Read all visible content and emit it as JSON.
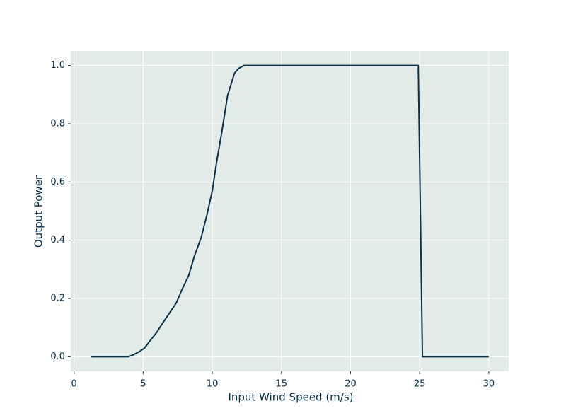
{
  "chart_data": {
    "type": "line",
    "xlabel": "Input Wind Speed (m/s)",
    "ylabel": "Output Power",
    "x": [
      1.2,
      3.9,
      4.3,
      4.7,
      5.1,
      5.5,
      6.0,
      6.4,
      6.9,
      7.4,
      7.8,
      8.3,
      8.7,
      9.2,
      9.6,
      10.0,
      10.3,
      10.7,
      11.1,
      11.6,
      11.9,
      12.3,
      24.9,
      25.2,
      30.0
    ],
    "values": [
      0,
      0,
      0.007,
      0.017,
      0.03,
      0.055,
      0.085,
      0.115,
      0.15,
      0.185,
      0.23,
      0.28,
      0.345,
      0.41,
      0.485,
      0.57,
      0.665,
      0.775,
      0.896,
      0.973,
      0.99,
      1.0,
      1.0,
      0,
      0
    ],
    "color": "#0b3149",
    "background": "#e3ebe8",
    "grid": true,
    "xlim": [
      -0.24,
      31.44
    ],
    "ylim": [
      -0.05,
      1.05
    ],
    "xticks": [
      0,
      5,
      10,
      15,
      20,
      25,
      30
    ],
    "yticks": [
      {
        "value": 0,
        "label": "0.0"
      },
      {
        "value": 0.2,
        "label": "0.2"
      },
      {
        "value": 0.4,
        "label": "0.4"
      },
      {
        "value": 0.6,
        "label": "0.6"
      },
      {
        "value": 0.8,
        "label": "0.8"
      },
      {
        "value": 1.0,
        "label": "1.0"
      }
    ]
  }
}
